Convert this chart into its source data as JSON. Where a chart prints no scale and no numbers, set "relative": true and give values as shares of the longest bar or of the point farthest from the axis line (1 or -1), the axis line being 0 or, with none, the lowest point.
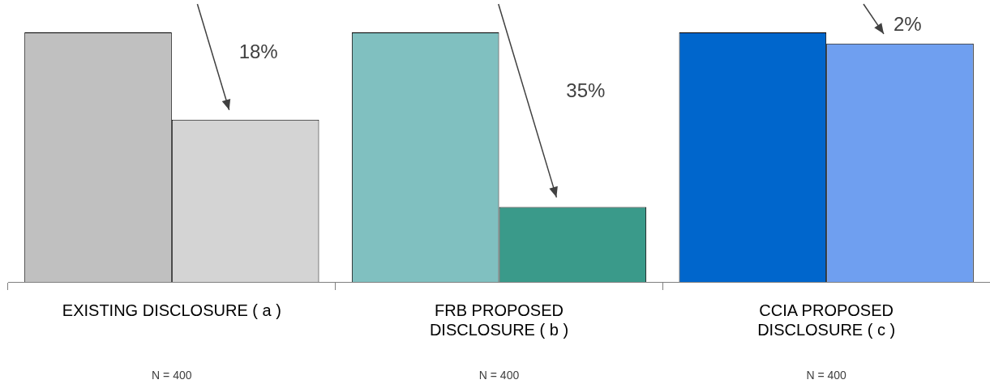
{
  "chart_data": {
    "type": "bar",
    "relative": true,
    "categories": [
      "EXISTING DISCLOSURE ( a )",
      "FRB PROPOSED\nDISCLOSURE ( b )",
      "CCIA PROPOSED\nDISCLOSURE ( c )"
    ],
    "series": [
      {
        "colors": [
          "#c0c0c0",
          "#80c0c0",
          "#0066cc"
        ],
        "values": [
          1,
          1,
          1
        ]
      },
      {
        "colors": [
          "#d4d4d4",
          "#3a9a8a",
          "#6f9ff0"
        ],
        "values": [
          0.65,
          0.3,
          0.955
        ]
      }
    ],
    "annotations": [
      "18%",
      "35%",
      "2%",
      "N = 400",
      "N = 400",
      "N = 400"
    ],
    "grid": false,
    "legend": false
  }
}
